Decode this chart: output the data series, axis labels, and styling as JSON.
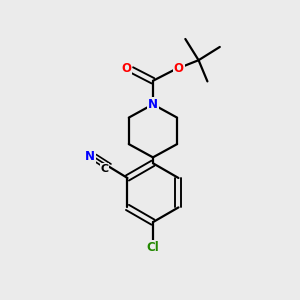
{
  "background_color": "#ebebeb",
  "bond_color": "#000000",
  "bond_width": 1.6,
  "atom_colors": {
    "N": "#0000ff",
    "O": "#ff0000",
    "Cl": "#228800",
    "C": "#000000"
  },
  "figsize": [
    3.0,
    3.0
  ],
  "dpi": 100
}
